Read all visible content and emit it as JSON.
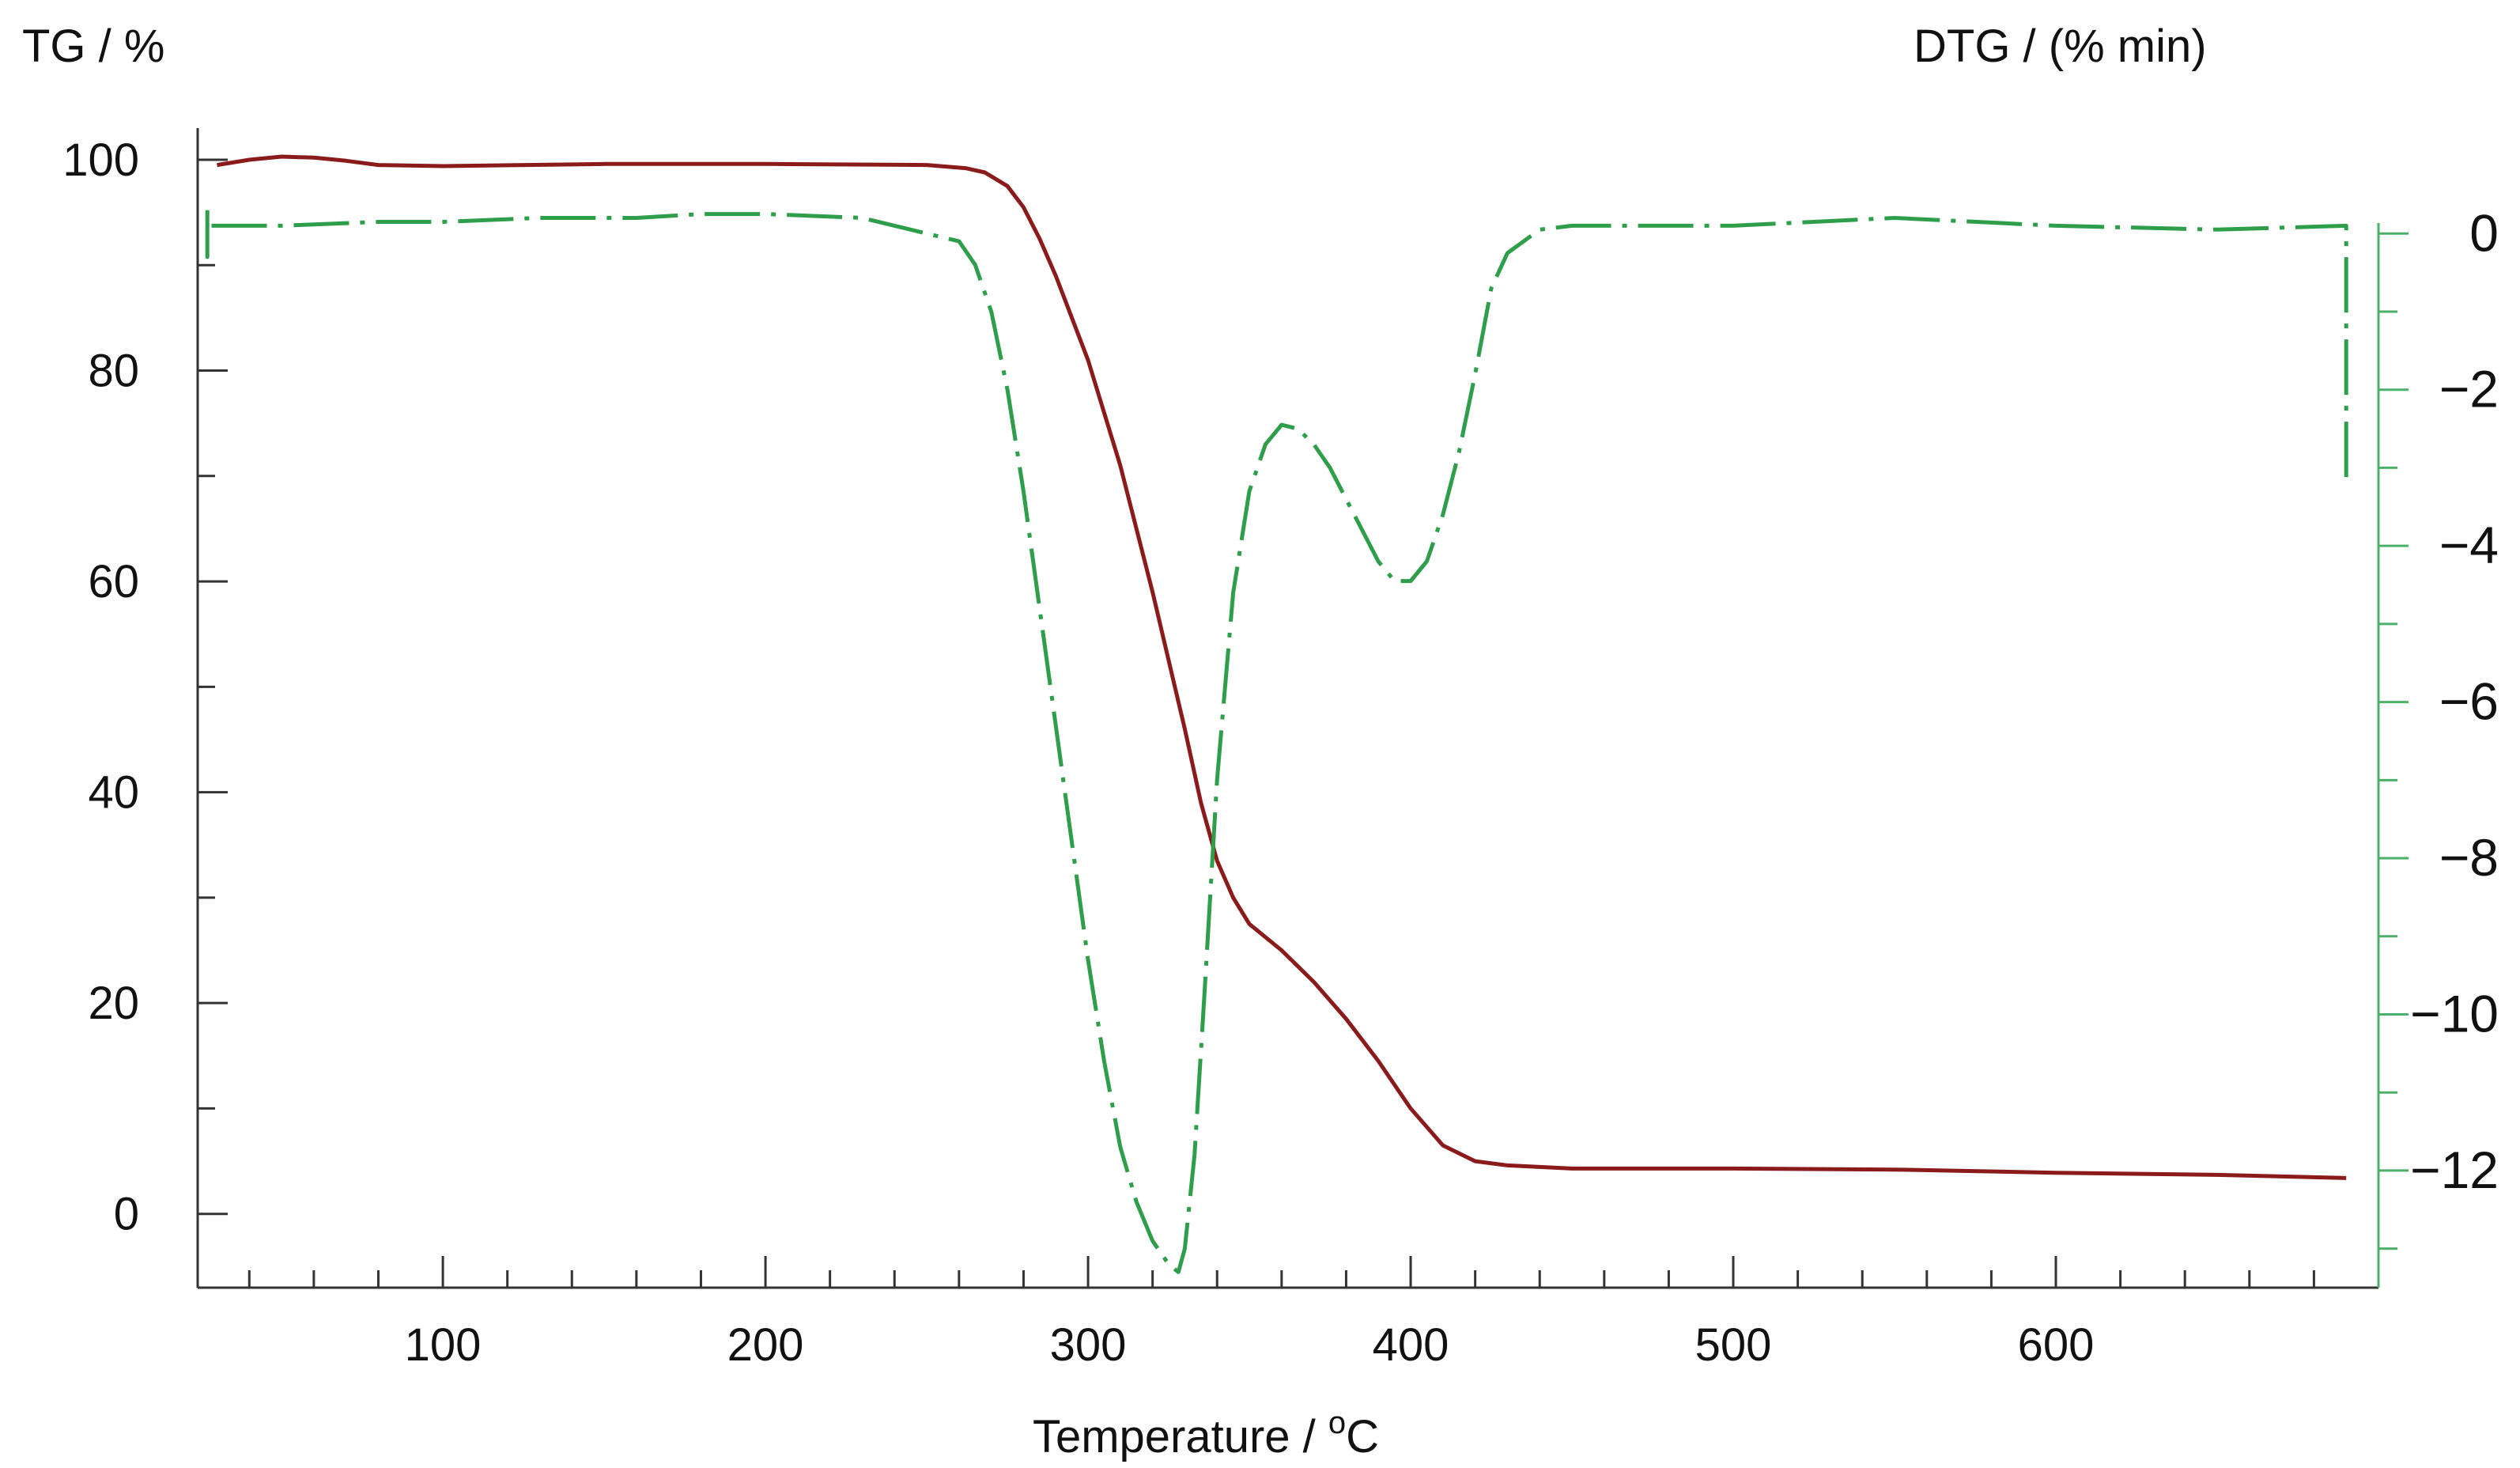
{
  "chart_data": {
    "type": "line",
    "title": "",
    "xlabel": "Temperature / °C",
    "xlabel_main": "Temperature / ",
    "xlabel_sup": "o",
    "xlabel_unit": "C",
    "ylabel_left": "TG / %",
    "ylabel_right": "DTG / (% min)",
    "xlim": [
      24,
      700
    ],
    "ylim_left": [
      -7,
      103
    ],
    "ylim_right": [
      -13.5,
      1.35
    ],
    "x_ticks": [
      100,
      200,
      300,
      400,
      500,
      600
    ],
    "left_ticks": [
      0,
      20,
      40,
      60,
      80,
      100
    ],
    "right_ticks": [
      0,
      -2,
      -4,
      -6,
      -8,
      -10,
      -12
    ],
    "right_tick_labels": [
      "0",
      "−2",
      "−4",
      "−6",
      "−8",
      "−10",
      "−12"
    ],
    "grid": false,
    "colors": {
      "tg": "#8b1a1a",
      "dtg": "#2e9e4a",
      "axis": "#333333",
      "right_axis": "#4caf6a"
    },
    "series": [
      {
        "name": "TG",
        "axis": "left",
        "style": "solid",
        "x": [
          30,
          40,
          50,
          60,
          70,
          80,
          100,
          150,
          200,
          250,
          262,
          268,
          275,
          280,
          285,
          290,
          300,
          310,
          320,
          330,
          335,
          340,
          345,
          350,
          360,
          370,
          380,
          390,
          400,
          410,
          420,
          430,
          450,
          500,
          550,
          600,
          650,
          690
        ],
        "values": [
          99.5,
          100.0,
          100.3,
          100.2,
          99.9,
          99.5,
          99.4,
          99.6,
          99.6,
          99.5,
          99.2,
          98.8,
          97.5,
          95.5,
          92.5,
          89.0,
          81.0,
          71.0,
          59.0,
          46.0,
          39.0,
          33.5,
          30.0,
          27.5,
          25.0,
          22.0,
          18.5,
          14.5,
          10.0,
          6.5,
          5.0,
          4.6,
          4.3,
          4.3,
          4.2,
          3.9,
          3.7,
          3.4
        ]
      },
      {
        "name": "DTG",
        "axis": "right",
        "style": "dash-dot",
        "x": [
          27,
          27,
          27,
          30,
          50,
          80,
          100,
          130,
          160,
          180,
          200,
          230,
          240,
          250,
          255,
          260,
          265,
          270,
          275,
          280,
          285,
          290,
          295,
          300,
          305,
          310,
          315,
          320,
          325,
          328,
          330,
          333,
          336,
          340,
          345,
          350,
          355,
          360,
          365,
          370,
          375,
          380,
          385,
          390,
          395,
          400,
          405,
          410,
          415,
          420,
          425,
          430,
          440,
          450,
          500,
          550,
          600,
          650,
          690,
          690,
          690
        ],
        "values": [
          0.3,
          -0.3,
          0.1,
          0.1,
          0.1,
          0.15,
          0.15,
          0.2,
          0.2,
          0.25,
          0.25,
          0.2,
          0.1,
          0.0,
          -0.05,
          -0.1,
          -0.4,
          -1.0,
          -2.0,
          -3.3,
          -4.8,
          -6.3,
          -7.8,
          -9.3,
          -10.6,
          -11.7,
          -12.4,
          -12.9,
          -13.2,
          -13.3,
          -13.0,
          -11.8,
          -9.8,
          -7.0,
          -4.6,
          -3.3,
          -2.7,
          -2.45,
          -2.5,
          -2.7,
          -3.0,
          -3.4,
          -3.8,
          -4.2,
          -4.45,
          -4.45,
          -4.2,
          -3.6,
          -2.8,
          -1.8,
          -0.7,
          -0.25,
          0.05,
          0.1,
          0.1,
          0.2,
          0.1,
          0.05,
          0.1,
          -0.6,
          -3.2
        ]
      }
    ]
  }
}
